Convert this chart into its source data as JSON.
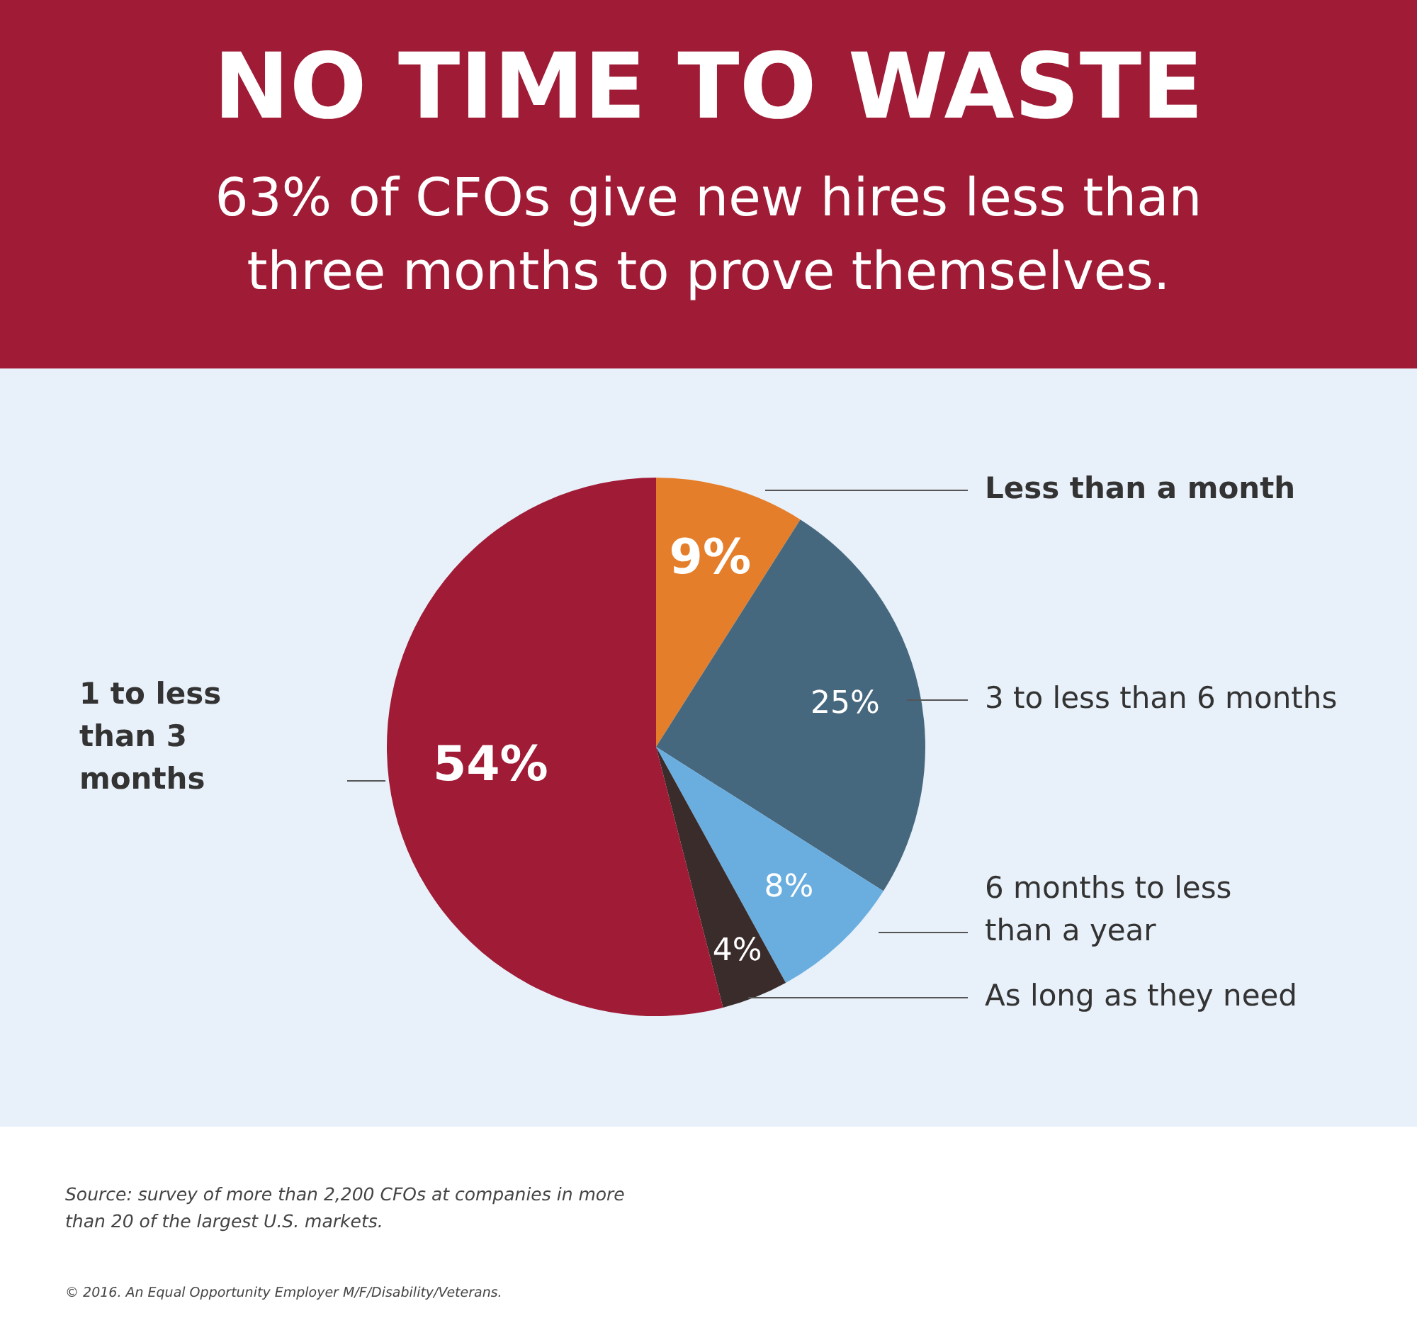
{
  "chart_data": {
    "type": "pie",
    "title": "NO TIME TO WASTE",
    "subtitle": "63% of CFOs give new hires less than three months to prove themselves.",
    "categories": [
      "Less than a month",
      "3 to less than 6 months",
      "6 months to less than a year",
      "As long as they need",
      "1 to less than 3 months"
    ],
    "values": [
      9,
      25,
      8,
      4,
      54
    ],
    "colors": [
      "#e57e2a",
      "#46687e",
      "#6aaee0",
      "#3a2c2a",
      "#a01b35"
    ],
    "value_labels": [
      "9%",
      "25%",
      "8%",
      "4%",
      "54%"
    ],
    "legend": false,
    "annotations": [
      "Source: survey of more than 2,200 CFOs at companies in more than 20 of the largest U.S. markets.",
      "© 2016. An Equal Opportunity Employer M/F/Disability/Veterans."
    ]
  }
}
